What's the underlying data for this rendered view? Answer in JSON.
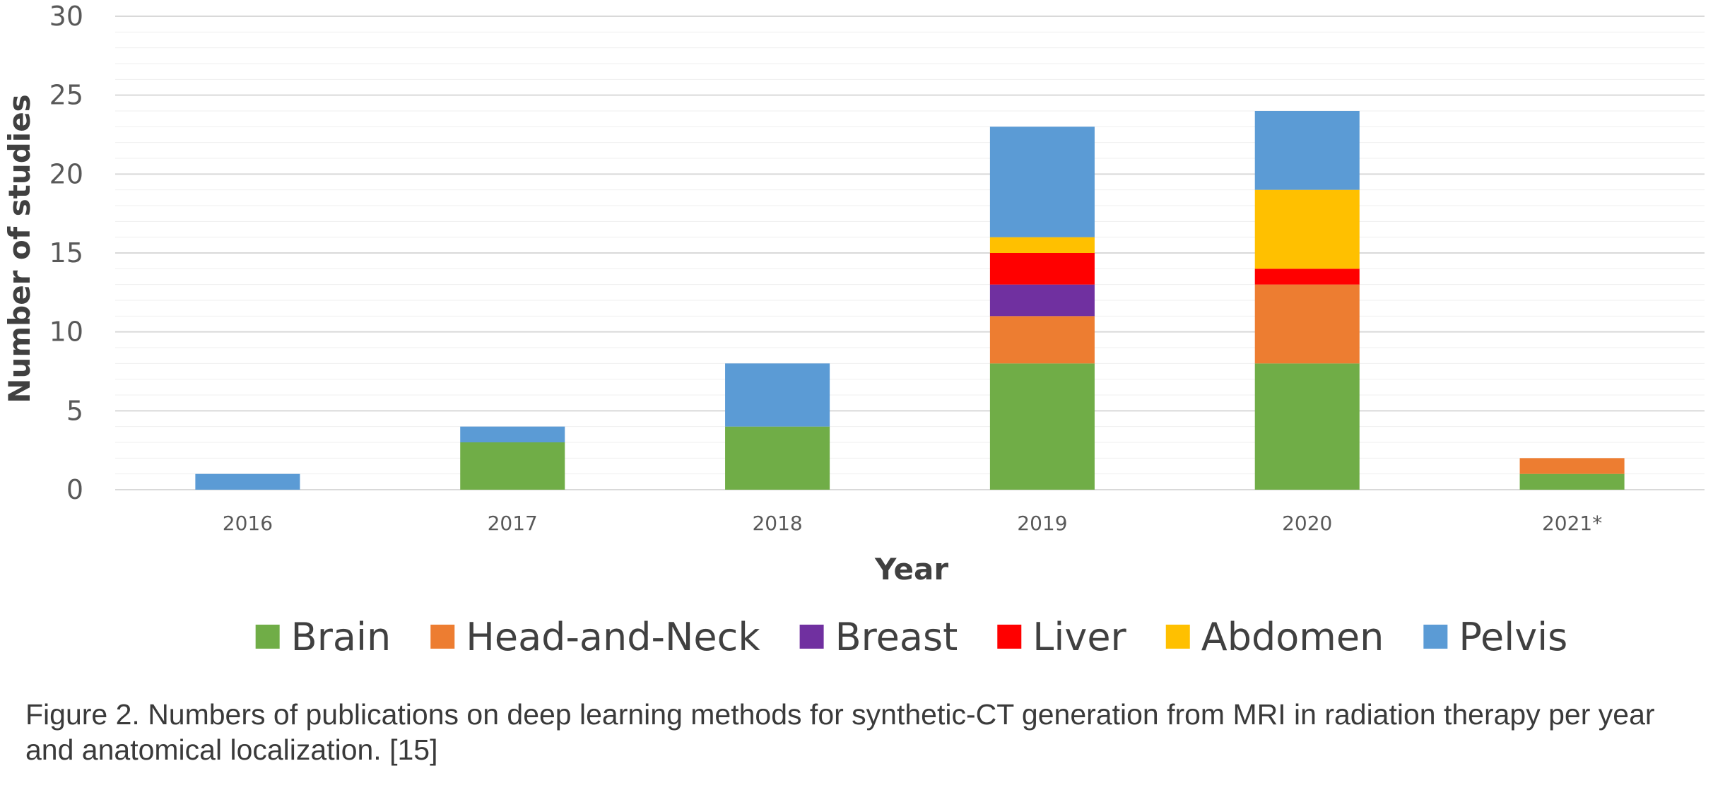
{
  "chart_data": {
    "type": "bar",
    "stacked": true,
    "categories": [
      "2016",
      "2017",
      "2018",
      "2019",
      "2020",
      "2021*"
    ],
    "series": [
      {
        "name": "Brain",
        "color": "#70ad47",
        "values": [
          0,
          3,
          4,
          8,
          8,
          1
        ]
      },
      {
        "name": "Head-and-Neck",
        "color": "#ed7d31",
        "values": [
          0,
          0,
          0,
          3,
          5,
          1
        ]
      },
      {
        "name": "Breast",
        "color": "#7030a0",
        "values": [
          0,
          0,
          0,
          2,
          0,
          0
        ]
      },
      {
        "name": "Liver",
        "color": "#ff0000",
        "values": [
          0,
          0,
          0,
          2,
          1,
          0
        ]
      },
      {
        "name": "Abdomen",
        "color": "#ffc000",
        "values": [
          0,
          0,
          0,
          1,
          5,
          0
        ]
      },
      {
        "name": "Pelvis",
        "color": "#5b9bd5",
        "values": [
          1,
          1,
          4,
          7,
          5,
          0
        ]
      }
    ],
    "title": "",
    "xlabel": "Year",
    "ylabel": "Number of studies",
    "ylim": [
      0,
      30
    ],
    "yticks": [
      0,
      5,
      10,
      15,
      20,
      25,
      30
    ],
    "grid": true,
    "legend_position": "bottom"
  },
  "caption": "Figure 2. Numbers of publications on deep learning methods for synthetic-CT generation from MRI in radiation therapy per year and anatomical localization. [15]"
}
